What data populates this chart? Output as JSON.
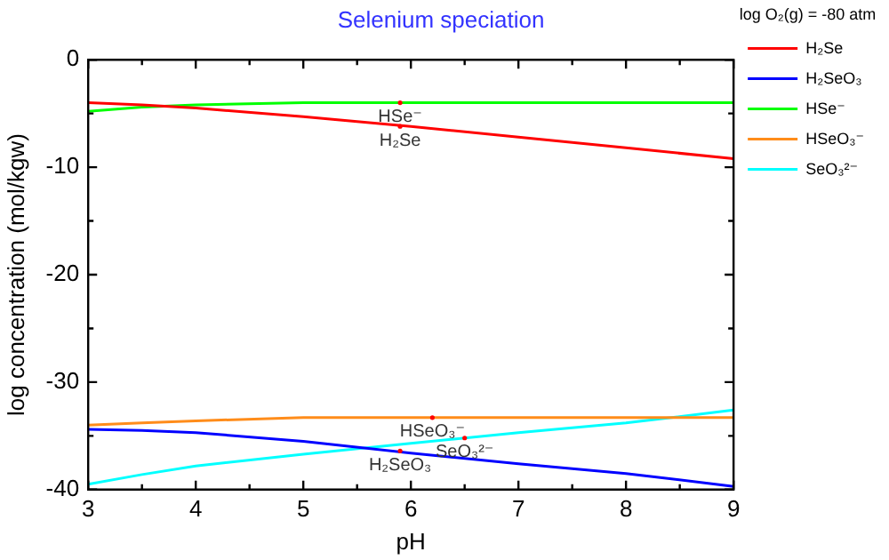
{
  "chart_data": {
    "type": "line",
    "title": "Selenium speciation",
    "xlabel": "pH",
    "ylabel": "log concentration (mol/kgw)",
    "legend_title": "log O₂(g) = -80 atm",
    "x": [
      3,
      3.5,
      4,
      5,
      6,
      7,
      8,
      9
    ],
    "series": [
      {
        "name": "H₂Se",
        "color": "#ff0000",
        "values": [
          -4.0,
          -4.2,
          -4.5,
          -5.3,
          -6.2,
          -7.2,
          -8.2,
          -9.2
        ]
      },
      {
        "name": "H₂SeO₃",
        "color": "#0000ff",
        "values": [
          -34.4,
          -34.5,
          -34.7,
          -35.5,
          -36.6,
          -37.6,
          -38.5,
          -39.7
        ]
      },
      {
        "name": "HSe⁻",
        "color": "#00ff00",
        "values": [
          -4.8,
          -4.4,
          -4.2,
          -4.0,
          -4.0,
          -4.0,
          -4.0,
          -4.0
        ]
      },
      {
        "name": "HSeO₃⁻",
        "color": "#ff8c1a",
        "values": [
          -34.0,
          -33.8,
          -33.6,
          -33.3,
          -33.3,
          -33.3,
          -33.3,
          -33.3
        ]
      },
      {
        "name": "SeO₃²⁻",
        "color": "#00ffff",
        "values": [
          -39.5,
          -38.6,
          -37.8,
          -36.7,
          -35.7,
          -34.7,
          -33.8,
          -32.6
        ]
      }
    ],
    "xlim": [
      3,
      9
    ],
    "ylim": [
      -40,
      0
    ],
    "xticks": [
      3,
      {
        "value": 3.5,
        "label": null
      },
      4,
      {
        "value": 4.5,
        "label": null
      },
      5,
      {
        "value": 5.5,
        "label": null
      },
      6,
      {
        "value": 6.5,
        "label": null
      },
      7,
      {
        "value": 7.5,
        "label": null
      },
      8,
      {
        "value": 8.5,
        "label": null
      },
      9
    ],
    "yticks": [
      -40,
      {
        "value": -35,
        "label": null
      },
      -30,
      {
        "value": -25,
        "label": null
      },
      -20,
      {
        "value": -15,
        "label": null
      },
      -10,
      {
        "value": -5,
        "label": null
      },
      0
    ],
    "annotations": [
      {
        "text": "HSe⁻",
        "x": 5.9,
        "y": -4.0
      },
      {
        "text": "H₂Se",
        "x": 5.9,
        "y": -6.2
      },
      {
        "text": "HSeO₃⁻",
        "x": 6.2,
        "y": -33.3
      },
      {
        "text": "SeO₃²⁻",
        "x": 6.5,
        "y": -35.2
      },
      {
        "text": "H₂SeO₃",
        "x": 5.9,
        "y": -36.4
      }
    ],
    "grid": false,
    "legend": "right",
    "marker": "none",
    "line_style": "solid"
  }
}
